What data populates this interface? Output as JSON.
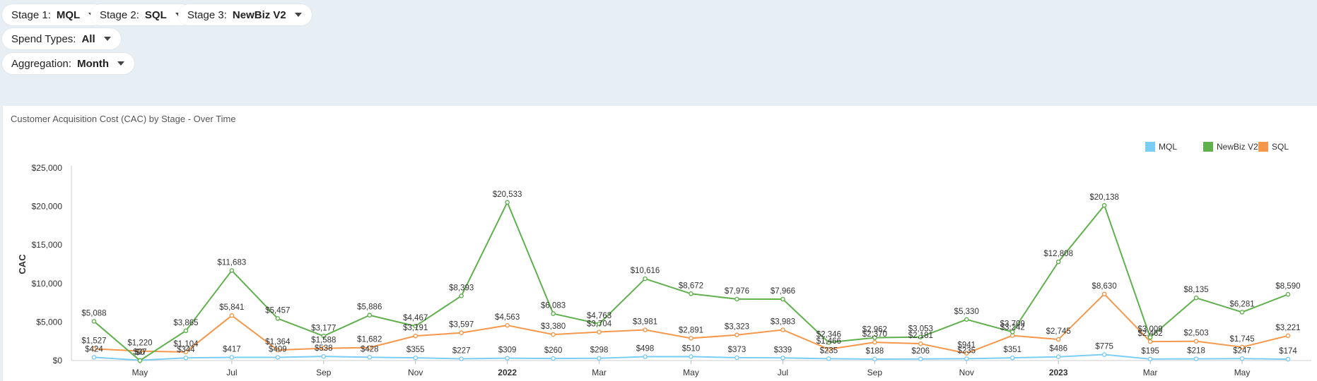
{
  "filters": {
    "stage1": {
      "label": "Stage 1:",
      "value": "MQL"
    },
    "stage2": {
      "label": "Stage 2:",
      "value": "SQL"
    },
    "stage3": {
      "label": "Stage 3:",
      "value": "NewBiz V2"
    },
    "spend_types": {
      "label": "Spend Types:",
      "value": "All"
    },
    "aggregation": {
      "label": "Aggregation:",
      "value": "Month"
    }
  },
  "colors": {
    "mql": "#7ccdf3",
    "newbiz": "#61b04e",
    "sql": "#f5984c"
  },
  "chart_data": {
    "type": "line",
    "title": "Customer Acquisition Cost (CAC) by Stage - Over Time",
    "ylabel": "CAC",
    "xlabel": "",
    "ylim": [
      0,
      25000
    ],
    "yticks": [
      "$0",
      "$5,000",
      "$10,000",
      "$15,000",
      "$20,000",
      "$25,000"
    ],
    "x": [
      "2021-04",
      "2021-05",
      "2021-06",
      "2021-07",
      "2021-08",
      "2021-09",
      "2021-10",
      "2021-11",
      "2021-12",
      "2022-01",
      "2022-02",
      "2022-03",
      "2022-04",
      "2022-05",
      "2022-06",
      "2022-07",
      "2022-08",
      "2022-09",
      "2022-10",
      "2022-11",
      "2022-12",
      "2023-01",
      "2023-02",
      "2023-03",
      "2023-04",
      "2023-05",
      "2023-06"
    ],
    "xtick_labels": [
      {
        "at": "2021-05",
        "label": "May",
        "bold": false
      },
      {
        "at": "2021-07",
        "label": "Jul",
        "bold": false
      },
      {
        "at": "2021-09",
        "label": "Sep",
        "bold": false
      },
      {
        "at": "2021-11",
        "label": "Nov",
        "bold": false
      },
      {
        "at": "2022-01",
        "label": "2022",
        "bold": true
      },
      {
        "at": "2022-03",
        "label": "Mar",
        "bold": false
      },
      {
        "at": "2022-05",
        "label": "May",
        "bold": false
      },
      {
        "at": "2022-07",
        "label": "Jul",
        "bold": false
      },
      {
        "at": "2022-09",
        "label": "Sep",
        "bold": false
      },
      {
        "at": "2022-11",
        "label": "Nov",
        "bold": false
      },
      {
        "at": "2023-01",
        "label": "2023",
        "bold": true
      },
      {
        "at": "2023-03",
        "label": "Mar",
        "bold": false
      },
      {
        "at": "2023-05",
        "label": "May",
        "bold": false
      }
    ],
    "legend_position": "top-right",
    "grid": false,
    "series": [
      {
        "name": "MQL",
        "color": "#7ccdf3",
        "values": [
          424,
          37,
          344,
          417,
          409,
          538,
          428,
          355,
          227,
          309,
          260,
          298,
          498,
          510,
          373,
          339,
          235,
          188,
          206,
          235,
          351,
          486,
          775,
          195,
          218,
          247,
          174
        ],
        "labels": [
          "$424",
          "$37",
          "$344",
          "$417",
          "$409",
          "$538",
          "$428",
          "$355",
          "$227",
          "$309",
          "$260",
          "$298",
          "$498",
          "$510",
          "$373",
          "$339",
          "$235",
          "$188",
          "$206",
          "$235",
          "$351",
          "$486",
          "$775",
          "$195",
          "$218",
          "$247",
          "$174"
        ]
      },
      {
        "name": "NewBiz V2",
        "color": "#61b04e",
        "values": [
          5088,
          0,
          3865,
          11683,
          5457,
          3177,
          5886,
          4467,
          8393,
          20533,
          6083,
          4763,
          10616,
          8672,
          7976,
          7966,
          2346,
          2962,
          3053,
          5330,
          3709,
          12808,
          20138,
          3009,
          8135,
          6281,
          8590
        ],
        "labels": [
          "$5,088",
          "$0",
          "$3,865",
          "$11,683",
          "$5,457",
          "$3,177",
          "$5,886",
          "$4,467",
          "$8,393",
          "$20,533",
          "$6,083",
          "$4,763",
          "$10,616",
          "$8,672",
          "$7,976",
          "$7,966",
          "$2,346",
          "$2,962",
          "$3,053",
          "$5,330",
          "$3,709",
          "$12,808",
          "$20,138",
          "$3,009",
          "$8,135",
          "$6,281",
          "$8,590"
        ]
      },
      {
        "name": "SQL",
        "color": "#f5984c",
        "values": [
          1527,
          1220,
          1104,
          5841,
          1364,
          1588,
          1682,
          3191,
          3597,
          4563,
          3380,
          3704,
          3981,
          2891,
          3323,
          3983,
          1466,
          2370,
          2181,
          941,
          3242,
          2745,
          8630,
          2462,
          2503,
          1745,
          3221
        ],
        "labels": [
          "$1,527",
          "$1,220",
          "$1,104",
          "$5,841",
          "$1,364",
          "$1,588",
          "$1,682",
          "$3,191",
          "$3,597",
          "$4,563",
          "$3,380",
          "$3,704",
          "$3,981",
          "$2,891",
          "$3,323",
          "$3,983",
          "$1,466",
          "$2,370",
          "$2,181",
          "$941",
          "$3,242",
          "$2,745",
          "$8,630",
          "$2,462",
          "$2,503",
          "$1,745",
          "$3,221"
        ]
      }
    ],
    "legend": [
      "MQL",
      "NewBiz V2",
      "SQL"
    ]
  }
}
